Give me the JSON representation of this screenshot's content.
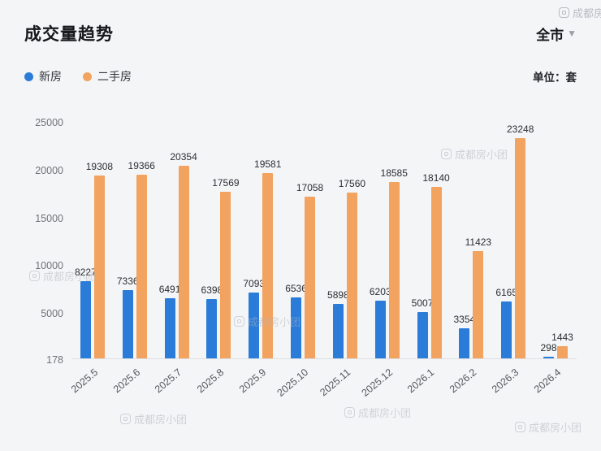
{
  "header": {
    "title": "成交量趋势",
    "region": "全市",
    "unit_label": "单位：套"
  },
  "legend": [
    {
      "label": "新房",
      "color": "#2b7cd9"
    },
    {
      "label": "二手房",
      "color": "#f2a360"
    }
  ],
  "watermark": {
    "text": "成都房小团"
  },
  "chart_data": {
    "type": "bar",
    "title": "成交量趋势",
    "categories": [
      "2025.5",
      "2025.6",
      "2025.7",
      "2025.8",
      "2025.9",
      "2025.10",
      "2025.11",
      "2025.12",
      "2026.1",
      "2026.2",
      "2026.3",
      "2026.4"
    ],
    "series": [
      {
        "name": "新房",
        "color": "#2b7cd9",
        "values": [
          8227,
          7336,
          6491,
          6398,
          7093,
          6536,
          5898,
          6203,
          5007,
          3354,
          6165,
          298
        ]
      },
      {
        "name": "二手房",
        "color": "#f2a360",
        "values": [
          19308,
          19366,
          20354,
          17569,
          19581,
          17058,
          17560,
          18585,
          18140,
          11423,
          23248,
          1443
        ]
      }
    ],
    "ylim": [
      178,
      25000
    ],
    "yticks": [
      178,
      5000,
      10000,
      15000,
      20000,
      25000
    ],
    "xlabel": "",
    "ylabel": "",
    "grid": false,
    "legend_position": "top-left",
    "unit": "套"
  }
}
